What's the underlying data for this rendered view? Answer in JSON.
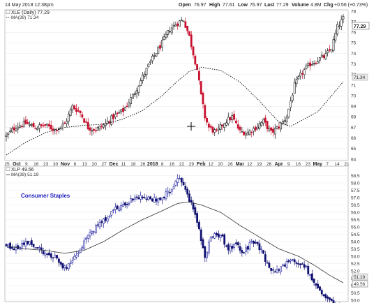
{
  "header": {
    "datetime": "14 May 2018 12:38pm",
    "open_label": "Open",
    "open": "76.97",
    "high_label": "High",
    "high": "77.61",
    "low_label": "Low",
    "low": "76.97",
    "last_label": "Last",
    "last": "77.29",
    "volume_label": "Volume",
    "volume": "4.8M",
    "chg_label": "Chg",
    "chg": "+0.56 (+0.73%)"
  },
  "top_panel": {
    "legend_main": "XLE (Daily) 77.29",
    "legend_ma": "MA(39) 71.34",
    "price_badge": "77.29",
    "ma_badge": "71.34"
  },
  "bottom_panel": {
    "legend_main": "XLP 49.56",
    "legend_ma": "MA(39) 51.19",
    "caption": "Consumer Staples",
    "price_badge": "49.56",
    "ma_badge": "51.19"
  },
  "x_axis_labels": [
    {
      "t": "25",
      "bold": false
    },
    {
      "t": "Oct",
      "bold": true
    },
    {
      "t": "9",
      "bold": false
    },
    {
      "t": "16",
      "bold": false
    },
    {
      "t": "23",
      "bold": false
    },
    {
      "t": "30",
      "bold": false
    },
    {
      "t": "Nov",
      "bold": true
    },
    {
      "t": "6",
      "bold": false
    },
    {
      "t": "13",
      "bold": false
    },
    {
      "t": "20",
      "bold": false
    },
    {
      "t": "27",
      "bold": false
    },
    {
      "t": "Dec",
      "bold": true
    },
    {
      "t": "11",
      "bold": false
    },
    {
      "t": "18",
      "bold": false
    },
    {
      "t": "26",
      "bold": false
    },
    {
      "t": "2018",
      "bold": true
    },
    {
      "t": "8",
      "bold": false
    },
    {
      "t": "16",
      "bold": false
    },
    {
      "t": "22",
      "bold": false
    },
    {
      "t": "29",
      "bold": false
    },
    {
      "t": "Feb",
      "bold": true
    },
    {
      "t": "12",
      "bold": false
    },
    {
      "t": "20",
      "bold": false
    },
    {
      "t": "26",
      "bold": false
    },
    {
      "t": "Mar",
      "bold": true
    },
    {
      "t": "12",
      "bold": false
    },
    {
      "t": "19",
      "bold": false
    },
    {
      "t": "26",
      "bold": false
    },
    {
      "t": "Apr",
      "bold": true
    },
    {
      "t": "9",
      "bold": false
    },
    {
      "t": "16",
      "bold": false
    },
    {
      "t": "23",
      "bold": false
    },
    {
      "t": "May",
      "bold": true
    },
    {
      "t": "7",
      "bold": false
    },
    {
      "t": "14",
      "bold": false
    },
    {
      "t": "21",
      "bold": false
    }
  ],
  "chart_data": [
    {
      "type": "candlestick",
      "symbol": "XLE",
      "period": "Daily",
      "ylim": [
        64,
        78
      ],
      "y_ticks": [
        64,
        65,
        66,
        67,
        68,
        69,
        70,
        71,
        72,
        73,
        74,
        75,
        76,
        77,
        78
      ],
      "up_color": "#111111",
      "down_color": "#c8102e",
      "ma_period": 39,
      "close_anchors": [
        [
          0,
          66.2
        ],
        [
          5,
          67.1
        ],
        [
          10,
          67.4
        ],
        [
          15,
          67.0
        ],
        [
          20,
          67.2
        ],
        [
          25,
          66.8
        ],
        [
          30,
          67.3
        ],
        [
          34,
          69.0
        ],
        [
          38,
          68.4
        ],
        [
          42,
          67.0
        ],
        [
          46,
          66.8
        ],
        [
          50,
          67.2
        ],
        [
          55,
          68.0
        ],
        [
          60,
          68.6
        ],
        [
          65,
          70.0
        ],
        [
          70,
          71.8
        ],
        [
          75,
          73.5
        ],
        [
          80,
          75.0
        ],
        [
          84,
          76.3
        ],
        [
          88,
          76.9
        ],
        [
          91,
          77.2
        ],
        [
          94,
          75.6
        ],
        [
          96,
          74.0
        ],
        [
          98,
          72.5
        ],
        [
          100,
          70.0
        ],
        [
          102,
          68.0
        ],
        [
          104,
          67.0
        ],
        [
          108,
          66.5
        ],
        [
          112,
          67.5
        ],
        [
          116,
          68.0
        ],
        [
          120,
          66.6
        ],
        [
          124,
          66.5
        ],
        [
          128,
          67.0
        ],
        [
          132,
          67.6
        ],
        [
          136,
          66.5
        ],
        [
          140,
          67.1
        ],
        [
          144,
          68.0
        ],
        [
          148,
          71.0
        ],
        [
          152,
          72.2
        ],
        [
          156,
          73.0
        ],
        [
          160,
          73.4
        ],
        [
          164,
          73.8
        ],
        [
          167,
          74.5
        ],
        [
          170,
          76.5
        ],
        [
          173,
          77.29
        ]
      ],
      "ma_anchors": [
        [
          0,
          64.4
        ],
        [
          10,
          65.6
        ],
        [
          20,
          66.5
        ],
        [
          30,
          67.0
        ],
        [
          40,
          67.2
        ],
        [
          50,
          67.3
        ],
        [
          60,
          67.8
        ],
        [
          70,
          68.6
        ],
        [
          80,
          70.0
        ],
        [
          88,
          71.4
        ],
        [
          94,
          72.3
        ],
        [
          100,
          72.7
        ],
        [
          110,
          72.4
        ],
        [
          120,
          71.3
        ],
        [
          130,
          69.5
        ],
        [
          136,
          68.3
        ],
        [
          140,
          67.5
        ],
        [
          146,
          67.1
        ],
        [
          152,
          67.7
        ],
        [
          160,
          68.5
        ],
        [
          167,
          70.0
        ],
        [
          173,
          71.34
        ]
      ]
    },
    {
      "type": "candlestick",
      "symbol": "XLP",
      "period": "Daily",
      "title": "Consumer Staples",
      "ylim": [
        50,
        59
      ],
      "y_ticks": [
        50.0,
        50.5,
        51.0,
        51.5,
        52.0,
        52.5,
        53.0,
        53.5,
        54.0,
        54.5,
        55.0,
        55.5,
        56.0,
        56.5,
        57.0,
        57.5,
        58.0,
        58.5
      ],
      "up_color": "#2020a0",
      "down_color": "#101070",
      "ma_period": 39,
      "close_anchors": [
        [
          0,
          53.8
        ],
        [
          5,
          53.5
        ],
        [
          10,
          53.9
        ],
        [
          15,
          53.7
        ],
        [
          20,
          53.1
        ],
        [
          25,
          52.9
        ],
        [
          30,
          52.2
        ],
        [
          34,
          52.6
        ],
        [
          38,
          53.5
        ],
        [
          42,
          54.3
        ],
        [
          46,
          55.0
        ],
        [
          50,
          55.4
        ],
        [
          55,
          56.1
        ],
        [
          60,
          56.5
        ],
        [
          65,
          56.9
        ],
        [
          70,
          57.0
        ],
        [
          75,
          56.8
        ],
        [
          80,
          57.0
        ],
        [
          84,
          57.5
        ],
        [
          88,
          58.2
        ],
        [
          90,
          58.2
        ],
        [
          92,
          57.4
        ],
        [
          95,
          56.6
        ],
        [
          98,
          55.4
        ],
        [
          100,
          54.2
        ],
        [
          102,
          53.0
        ],
        [
          105,
          54.3
        ],
        [
          110,
          54.5
        ],
        [
          114,
          53.4
        ],
        [
          118,
          53.8
        ],
        [
          122,
          53.2
        ],
        [
          126,
          54.0
        ],
        [
          130,
          53.6
        ],
        [
          134,
          52.5
        ],
        [
          138,
          51.8
        ],
        [
          142,
          52.3
        ],
        [
          146,
          52.8
        ],
        [
          150,
          52.6
        ],
        [
          154,
          52.2
        ],
        [
          158,
          51.2
        ],
        [
          162,
          50.4
        ],
        [
          166,
          50.1
        ],
        [
          170,
          49.6
        ],
        [
          173,
          49.56
        ]
      ],
      "ma_anchors": [
        [
          0,
          53.7
        ],
        [
          10,
          53.5
        ],
        [
          20,
          53.4
        ],
        [
          30,
          53.2
        ],
        [
          40,
          53.4
        ],
        [
          50,
          54.0
        ],
        [
          60,
          54.8
        ],
        [
          70,
          55.5
        ],
        [
          80,
          56.1
        ],
        [
          88,
          56.6
        ],
        [
          94,
          56.7
        ],
        [
          100,
          56.5
        ],
        [
          110,
          56.0
        ],
        [
          120,
          55.1
        ],
        [
          130,
          54.3
        ],
        [
          140,
          53.5
        ],
        [
          150,
          53.0
        ],
        [
          158,
          52.4
        ],
        [
          166,
          51.7
        ],
        [
          173,
          51.19
        ]
      ]
    }
  ]
}
